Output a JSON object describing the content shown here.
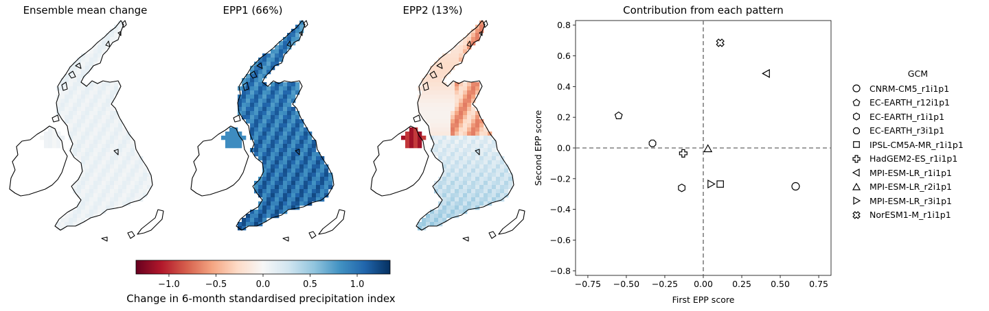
{
  "maps": [
    {
      "title": "Ensemble mean change",
      "field": "mean"
    },
    {
      "title": "EPP1 (66%)",
      "field": "epp1"
    },
    {
      "title": "EPP2 (13%)",
      "field": "epp2"
    }
  ],
  "colorbar": {
    "label": "Change in 6-month standardised precipitation index",
    "ticks": [
      "−1.0",
      "−0.5",
      "0.0",
      "0.5",
      "1.0"
    ],
    "tick_values": [
      -1.0,
      -0.5,
      0.0,
      0.5,
      1.0
    ],
    "range": [
      -1.35,
      1.35
    ],
    "colormap": "RdBu",
    "colors": [
      "#67001f",
      "#b2182b",
      "#d6604d",
      "#f4a582",
      "#fddbc7",
      "#f7f7f7",
      "#d1e5f0",
      "#92c5de",
      "#4393c3",
      "#2166ac",
      "#053061"
    ]
  },
  "chart_data": {
    "type": "scatter",
    "title": "Contribution from each pattern",
    "xlabel": "First EPP score",
    "ylabel": "Second EPP score",
    "xlim": [
      -0.83,
      0.83
    ],
    "ylim": [
      -0.83,
      0.83
    ],
    "xticks": [
      -0.75,
      -0.5,
      -0.25,
      0.0,
      0.25,
      0.5,
      0.75
    ],
    "xtick_labels": [
      "−0.75",
      "−0.50",
      "−0.25",
      "0.00",
      "0.25",
      "0.50",
      "0.75"
    ],
    "yticks": [
      -0.8,
      -0.6,
      -0.4,
      -0.2,
      0.0,
      0.2,
      0.4,
      0.6,
      0.8
    ],
    "ytick_labels": [
      "−0.8",
      "−0.6",
      "−0.4",
      "−0.2",
      "0.0",
      "0.2",
      "0.4",
      "0.6",
      "0.8"
    ],
    "reference_lines": {
      "x": 0.0,
      "y": 0.0,
      "style": "dashed",
      "color": "#7f7f7f"
    },
    "legend_title": "GCM",
    "legend_position": "right",
    "series": [
      {
        "name": "CNRM-CM5_r1i1p1",
        "marker": "circle",
        "x": 0.6,
        "y": -0.25
      },
      {
        "name": "EC-EARTH_r12i1p1",
        "marker": "pentagon",
        "x": -0.55,
        "y": 0.21
      },
      {
        "name": "EC-EARTH_r1i1p1",
        "marker": "hexagon",
        "x": -0.14,
        "y": -0.26
      },
      {
        "name": "EC-EARTH_r3i1p1",
        "marker": "octagon",
        "x": -0.33,
        "y": 0.03
      },
      {
        "name": "IPSL-CM5A-MR_r1i1p1",
        "marker": "square",
        "x": 0.11,
        "y": -0.235
      },
      {
        "name": "HadGEM2-ES_r1i1p1",
        "marker": "plus",
        "x": -0.13,
        "y": -0.035
      },
      {
        "name": "MPI-ESM-LR_r1i1p1",
        "marker": "triangle-left",
        "x": 0.41,
        "y": 0.485
      },
      {
        "name": "MPI-ESM-LR_r2i1p1",
        "marker": "triangle-up",
        "x": 0.03,
        "y": -0.005
      },
      {
        "name": "MPI-ESM-LR_r3i1p1",
        "marker": "triangle-right",
        "x": 0.05,
        "y": -0.235
      },
      {
        "name": "NorESM1-M_r1i1p1",
        "marker": "x-filled",
        "x": 0.11,
        "y": 0.685
      }
    ]
  }
}
